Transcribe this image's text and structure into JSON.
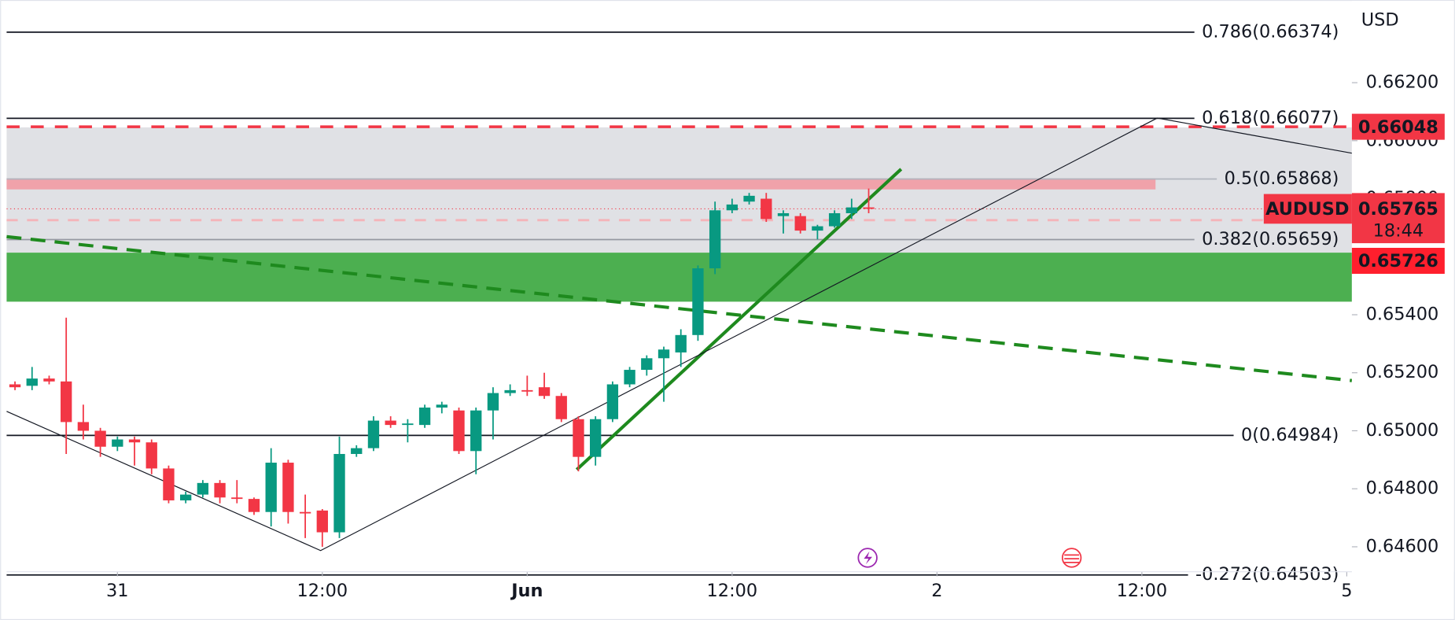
{
  "chart_data": {
    "type": "candlestick",
    "symbol": "AUDUSD",
    "currency": "USD",
    "countdown": "18:44",
    "last_price": 0.65765,
    "up_color": "#089981",
    "down_color": "#f23645",
    "open": [
      0.6516,
      0.65155,
      0.6518,
      0.6517,
      0.6503,
      0.65,
      0.64945,
      0.6497,
      0.6496,
      0.6487,
      0.6476,
      0.6478,
      0.6482,
      0.6477,
      0.64765,
      0.6472,
      0.6489,
      0.6472,
      0.64725,
      0.6465,
      0.6492,
      0.6494,
      0.65035,
      0.6502,
      0.6502,
      0.6508,
      0.6507,
      0.6493,
      0.6507,
      0.6513,
      0.6514,
      0.6515,
      0.6512,
      0.6504,
      0.6491,
      0.6504,
      0.6516,
      0.6521,
      0.6525,
      0.6527,
      0.6533,
      0.6556,
      0.6576,
      0.6579,
      0.658,
      0.6574,
      0.6574,
      0.6569,
      0.65705,
      0.6575,
      0.6577
    ],
    "high": [
      0.6517,
      0.6522,
      0.6519,
      0.6539,
      0.6509,
      0.6501,
      0.6498,
      0.6498,
      0.6497,
      0.6488,
      0.6479,
      0.6483,
      0.6483,
      0.6483,
      0.6477,
      0.6494,
      0.649,
      0.6478,
      0.6473,
      0.6498,
      0.6495,
      0.6505,
      0.6505,
      0.6504,
      0.6509,
      0.651,
      0.6508,
      0.6508,
      0.6515,
      0.6516,
      0.6519,
      0.652,
      0.6513,
      0.6505,
      0.6505,
      0.6517,
      0.6522,
      0.6526,
      0.6529,
      0.6535,
      0.6557,
      0.6579,
      0.658,
      0.6582,
      0.6582,
      0.6576,
      0.6575,
      0.6571,
      0.6576,
      0.658,
      0.65835
    ],
    "low": [
      0.6514,
      0.6514,
      0.6516,
      0.6492,
      0.6497,
      0.6491,
      0.6493,
      0.6488,
      0.6485,
      0.6475,
      0.6475,
      0.6477,
      0.6475,
      0.6475,
      0.6471,
      0.6467,
      0.6468,
      0.6463,
      0.646,
      0.6463,
      0.6491,
      0.6493,
      0.6501,
      0.6496,
      0.6501,
      0.6506,
      0.6492,
      0.6485,
      0.6497,
      0.6512,
      0.6512,
      0.6511,
      0.6503,
      0.6486,
      0.6488,
      0.6503,
      0.6515,
      0.6519,
      0.651,
      0.6522,
      0.6531,
      0.6554,
      0.6575,
      0.6578,
      0.6572,
      0.6568,
      0.6568,
      0.6566,
      0.657,
      0.6573,
      0.6575
    ],
    "close": [
      0.6515,
      0.6518,
      0.6517,
      0.6503,
      0.65,
      0.64945,
      0.6497,
      0.6496,
      0.6487,
      0.6476,
      0.6478,
      0.6482,
      0.6477,
      0.64765,
      0.6472,
      0.6489,
      0.6472,
      0.64715,
      0.6465,
      0.6492,
      0.6494,
      0.65035,
      0.6502,
      0.65025,
      0.6508,
      0.6509,
      0.6493,
      0.6507,
      0.6513,
      0.6514,
      0.65135,
      0.6512,
      0.6504,
      0.6491,
      0.6504,
      0.6516,
      0.6521,
      0.6525,
      0.6528,
      0.6533,
      0.6556,
      0.6576,
      0.6578,
      0.6581,
      0.6573,
      0.6575,
      0.6569,
      0.65705,
      0.6575,
      0.6577,
      0.65765
    ],
    "xlim": [
      -0.49,
      78.3
    ],
    "xticks": [
      {
        "value": 6,
        "label": "31"
      },
      {
        "value": 18,
        "label": "12:00"
      },
      {
        "value": 30,
        "label": "Jun"
      },
      {
        "value": 42,
        "label": "12:00"
      },
      {
        "value": 54,
        "label": "2"
      },
      {
        "value": 66,
        "label": "12:00"
      },
      {
        "value": 78,
        "label": "5"
      }
    ],
    "ylim": [
      0.64514,
      0.66469
    ],
    "yticks": [
      {
        "value": 0.662,
        "label": "0.66200"
      },
      {
        "value": 0.66,
        "label": "0.66000"
      },
      {
        "value": 0.658,
        "label": "0.65800"
      },
      {
        "value": 0.654,
        "label": "0.65400"
      },
      {
        "value": 0.652,
        "label": "0.65200"
      },
      {
        "value": 0.65,
        "label": "0.65000"
      },
      {
        "value": 0.648,
        "label": "0.64800"
      },
      {
        "value": 0.646,
        "label": "0.64600"
      }
    ],
    "fib_levels": [
      {
        "value": 0.66374,
        "label": "0.786(0.66374)",
        "color": "#131722"
      },
      {
        "value": 0.66077,
        "label": "0.618(0.66077)",
        "color": "#131722"
      },
      {
        "value": 0.65868,
        "label": "0.5(0.65868)",
        "color": "#b2b5be"
      },
      {
        "value": 0.65659,
        "label": "0.382(0.65659)",
        "color": "#9598a1"
      },
      {
        "value": 0.64984,
        "label": "0(0.64984)",
        "color": "#131722"
      },
      {
        "value": 0.64503,
        "label": "-0.272(0.64503)",
        "color": "#131722"
      }
    ],
    "zones": [
      {
        "top": 0.66046,
        "bottom": 0.65614,
        "color": "#e0e1e5"
      },
      {
        "top": 0.6587,
        "bottom": 0.65832,
        "color": "#f0a2aa",
        "x_end": 66.8
      },
      {
        "top": 0.65614,
        "bottom": 0.65445,
        "color": "#4caf50"
      }
    ],
    "price_lines": [
      {
        "value": 0.66048,
        "color": "#f23645",
        "dash": "14 12",
        "width": 3
      },
      {
        "value": 0.65726,
        "color": "#f4b4b9",
        "dash": "12 10",
        "width": 2.5
      },
      {
        "value": 0.65765,
        "color": "#f23645",
        "dash": "1 3",
        "width": 1
      }
    ],
    "trendlines": [
      {
        "x": [
          -0.49,
          78.3
        ],
        "y": [
          0.65669,
          0.65173
        ],
        "color": "#1e8a1e",
        "dash": "16 10",
        "width": 3.5
      },
      {
        "x": [
          32.9,
          51.9
        ],
        "y": [
          0.64866,
          0.65902
        ],
        "color": "#1e8a1e",
        "width": 3.5
      },
      {
        "x": [
          -0.49,
          17.9,
          66.9,
          78.3
        ],
        "y": [
          0.65067,
          0.64587,
          0.66078,
          0.65957
        ],
        "color": "#131722",
        "width": 1
      }
    ],
    "price_labels": [
      {
        "value": 0.66048,
        "color": "#f23645"
      },
      {
        "value": 0.65726,
        "color": "#ff1f2d"
      }
    ]
  }
}
